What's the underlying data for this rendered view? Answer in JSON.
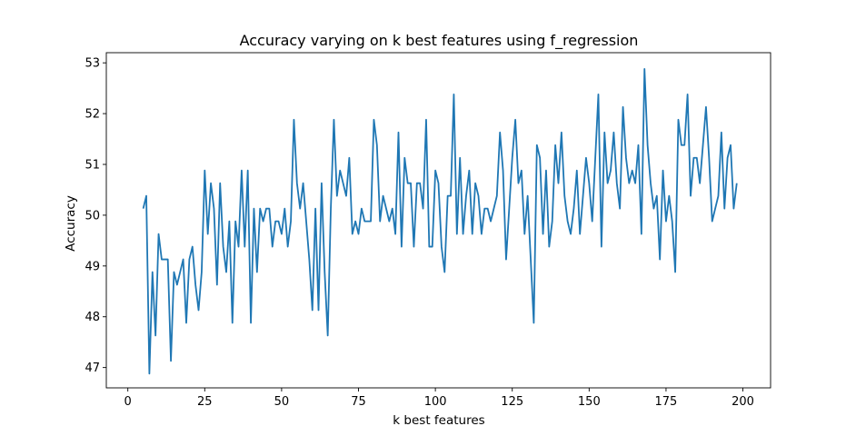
{
  "chart_data": {
    "type": "line",
    "title": "Accuracy varying on k best features using f_regression",
    "xlabel": "k best features",
    "ylabel": "Accuracy",
    "xlim": [
      -7,
      209
    ],
    "ylim": [
      46.6,
      53.2
    ],
    "xticks": [
      0,
      25,
      50,
      75,
      100,
      125,
      150,
      175,
      200
    ],
    "yticks": [
      47,
      48,
      49,
      50,
      51,
      52,
      53
    ],
    "grid": false,
    "color": "#1f77b4",
    "series": [
      {
        "x_start": 5,
        "values": [
          50.13,
          50.38,
          46.88,
          48.88,
          47.63,
          49.63,
          49.13,
          49.13,
          49.13,
          47.13,
          48.88,
          48.63,
          48.88,
          49.13,
          47.88,
          49.13,
          49.38,
          48.63,
          48.13,
          48.88,
          50.88,
          49.63,
          50.63,
          50.13,
          48.63,
          50.63,
          49.38,
          48.88,
          49.88,
          47.88,
          49.88,
          49.38,
          50.88,
          49.38,
          50.88,
          47.88,
          50.13,
          48.88,
          50.13,
          49.88,
          50.13,
          50.13,
          49.38,
          49.88,
          49.88,
          49.63,
          50.13,
          49.38,
          49.88,
          51.88,
          50.63,
          50.13,
          50.63,
          49.88,
          49.13,
          48.13,
          50.13,
          48.13,
          50.63,
          48.88,
          47.63,
          50.13,
          51.88,
          50.38,
          50.88,
          50.63,
          50.38,
          51.13,
          49.63,
          49.88,
          49.63,
          50.13,
          49.88,
          49.88,
          49.88,
          51.88,
          51.38,
          49.88,
          50.38,
          50.13,
          49.88,
          50.13,
          49.63,
          51.63,
          49.38,
          51.13,
          50.63,
          50.63,
          49.38,
          50.63,
          50.63,
          50.13,
          51.88,
          49.38,
          49.38,
          50.88,
          50.63,
          49.38,
          48.88,
          50.38,
          50.38,
          52.38,
          49.63,
          51.13,
          49.63,
          50.38,
          50.88,
          49.63,
          50.63,
          50.38,
          49.63,
          50.13,
          50.13,
          49.88,
          50.13,
          50.38,
          51.63,
          50.88,
          49.13,
          50.13,
          51.13,
          51.88,
          50.63,
          50.88,
          49.63,
          50.38,
          49.13,
          47.88,
          51.38,
          51.13,
          49.63,
          50.88,
          49.38,
          49.88,
          51.38,
          50.63,
          51.63,
          50.38,
          49.88,
          49.63,
          50.13,
          50.88,
          49.63,
          50.38,
          51.13,
          50.63,
          49.88,
          51.13,
          52.38,
          49.38,
          51.63,
          50.63,
          50.88,
          51.63,
          50.63,
          50.13,
          52.13,
          51.13,
          50.63,
          50.88,
          50.63,
          51.38,
          49.63,
          52.88,
          51.38,
          50.63,
          50.13,
          50.38,
          49.13,
          50.88,
          49.88,
          50.38,
          49.88,
          48.88,
          51.88,
          51.38,
          51.38,
          52.38,
          50.38,
          51.13,
          51.13,
          50.63,
          51.38,
          52.13,
          51.13,
          49.88,
          50.13,
          50.38,
          51.63,
          50.13,
          51.13,
          51.38,
          50.13,
          50.63
        ]
      }
    ]
  }
}
